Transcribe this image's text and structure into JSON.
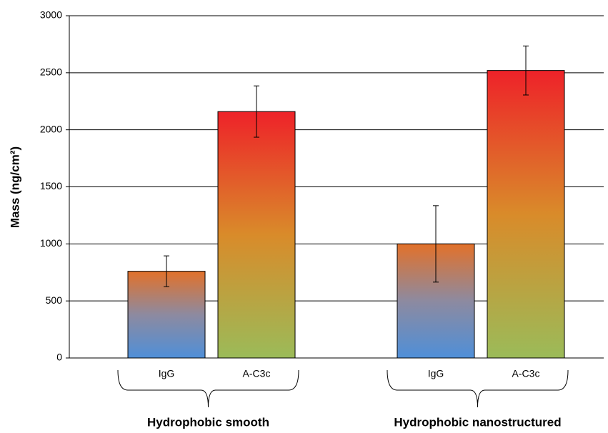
{
  "chart_data": {
    "type": "bar",
    "ylabel": "Mass (ng/cm²)",
    "ylim": [
      0,
      3000
    ],
    "yticks": [
      0,
      500,
      1000,
      1500,
      2000,
      2500,
      3000
    ],
    "grid": true,
    "groups": [
      {
        "name": "Hydrophobic smooth",
        "bars": [
          {
            "label": "IgG",
            "value": 760,
            "error": 135,
            "colors": [
              "#4f8fd8",
              "#8d8aa0",
              "#e2712a"
            ]
          },
          {
            "label": "A-C3c",
            "value": 2160,
            "error": 225,
            "colors": [
              "#9bbb59",
              "#d98b2a",
              "#ee2229"
            ]
          }
        ]
      },
      {
        "name": "Hydrophobic nanostructured",
        "bars": [
          {
            "label": "IgG",
            "value": 1000,
            "error": 335,
            "colors": [
              "#4f8fd8",
              "#8d8aa0",
              "#e2712a"
            ]
          },
          {
            "label": "A-C3c",
            "value": 2520,
            "error": 215,
            "colors": [
              "#9bbb59",
              "#d98b2a",
              "#ee2229"
            ]
          }
        ]
      }
    ]
  }
}
